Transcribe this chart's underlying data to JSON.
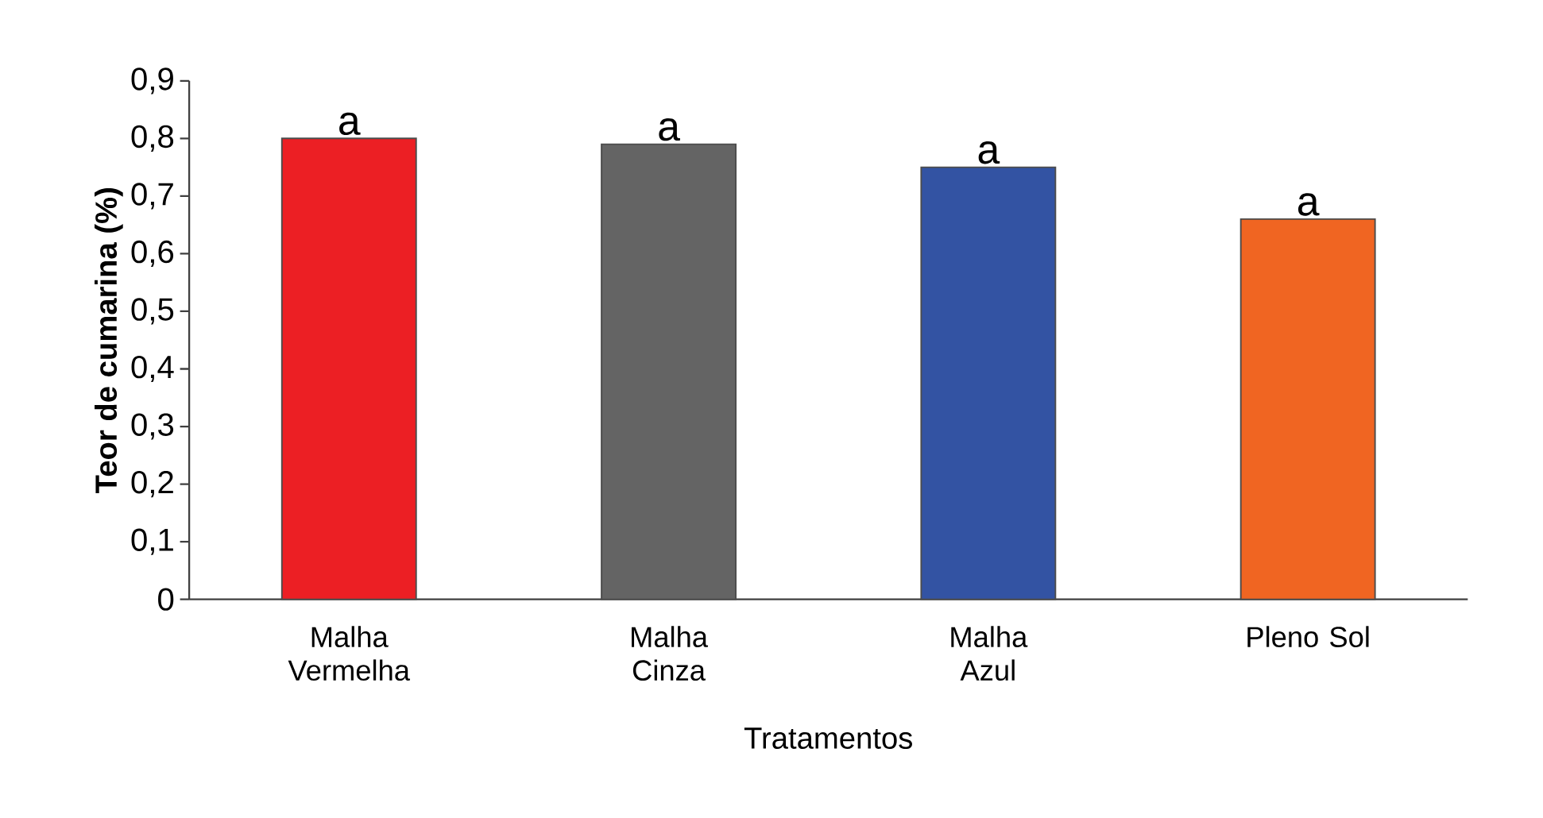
{
  "chart_data": {
    "type": "bar",
    "xlabel": "Tratamentos",
    "ylabel": "Teor de cumarina (%)",
    "categories": [
      "Malha Vermelha",
      "Malha Cinza",
      "Malha Azul",
      "Pleno Sol"
    ],
    "values": [
      0.8,
      0.79,
      0.75,
      0.66
    ],
    "colors": [
      "#ec1f24",
      "#646464",
      "#3353a3",
      "#f06522"
    ],
    "ylim": [
      0,
      0.9
    ],
    "yticks": [
      {
        "value": 0,
        "label": "0"
      },
      {
        "value": 0.1,
        "label": "0,1"
      },
      {
        "value": 0.2,
        "label": "0,2"
      },
      {
        "value": 0.3,
        "label": "0,3"
      },
      {
        "value": 0.4,
        "label": "0,4"
      },
      {
        "value": 0.5,
        "label": "0,5"
      },
      {
        "value": 0.6,
        "label": "0,6"
      },
      {
        "value": 0.7,
        "label": "0,7"
      },
      {
        "value": 0.8,
        "label": "0,8"
      },
      {
        "value": 0.9,
        "label": "0,9"
      }
    ],
    "annotations": [
      {
        "text": "a",
        "x": "Malha Vermelha",
        "y": 0.8
      },
      {
        "text": "a",
        "x": "Malha Cinza",
        "y": 0.79
      },
      {
        "text": "a",
        "x": "Malha Azul",
        "y": 0.75
      },
      {
        "text": "a",
        "x": "Pleno Sol",
        "y": 0.66
      }
    ],
    "grid": false
  }
}
